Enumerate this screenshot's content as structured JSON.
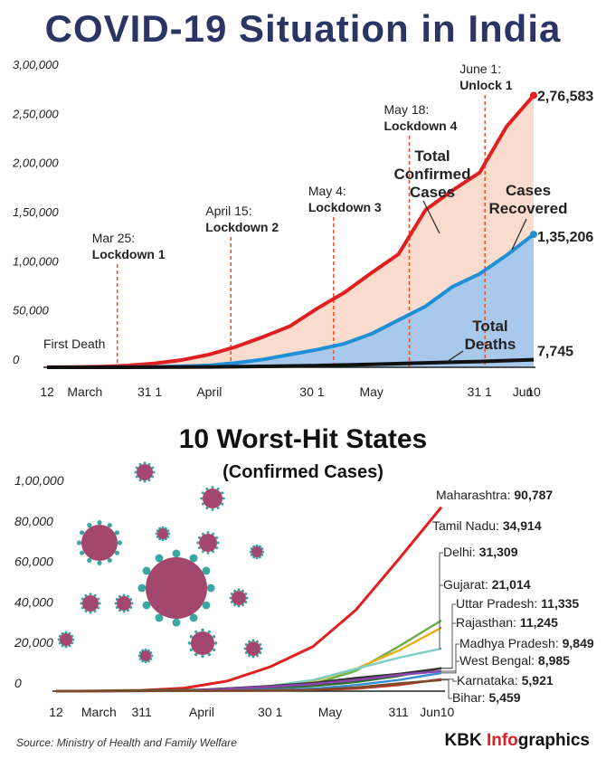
{
  "page": {
    "title": "COVID-19 Situation in India",
    "source": "Source: Ministry of Health and Family Welfare",
    "brand_a": "KBK ",
    "brand_b": "Info",
    "brand_c": "graphics"
  },
  "chart_data": [
    {
      "type": "area",
      "ylim": [
        0,
        300000
      ],
      "y_ticks": [
        "0",
        "50,000",
        "1,00,000",
        "1,50,000",
        "2,00,000",
        "2,50,000",
        "3,00,000"
      ],
      "x_ticks": [
        "12",
        "March",
        "31 1",
        "April",
        "30 1",
        "May",
        "31 1",
        "Jun",
        "10"
      ],
      "x_days": [
        0,
        7,
        19,
        30,
        49,
        60,
        80,
        88,
        90
      ],
      "first_death_label": "First Death",
      "events": [
        {
          "date_label": "Mar 25:",
          "name": "Lockdown 1",
          "day": 13
        },
        {
          "date_label": "April 15:",
          "name": "Lockdown 2",
          "day": 34
        },
        {
          "date_label": "May 4:",
          "name": "Lockdown 3",
          "day": 53
        },
        {
          "date_label": "May 18:",
          "name": "Lockdown 4",
          "day": 67
        },
        {
          "date_label": "June 1:",
          "name": "Unlock 1",
          "day": 81
        }
      ],
      "series": [
        {
          "name": "Total Confirmed Cases",
          "color": "#e02020",
          "end_label": "2,76,583",
          "x": [
            0,
            5,
            10,
            15,
            20,
            25,
            30,
            35,
            40,
            45,
            50,
            55,
            60,
            65,
            70,
            75,
            80,
            85,
            90
          ],
          "y": [
            100,
            200,
            700,
            1800,
            4000,
            7500,
            13000,
            21000,
            31000,
            42000,
            60000,
            76000,
            96000,
            115000,
            160000,
            180000,
            198000,
            245000,
            276583
          ]
        },
        {
          "name": "Cases Recovered",
          "color": "#1f8fd6",
          "end_label": "1,35,206",
          "x": [
            0,
            5,
            10,
            15,
            20,
            25,
            30,
            35,
            40,
            45,
            50,
            55,
            60,
            65,
            70,
            75,
            80,
            85,
            90
          ],
          "y": [
            0,
            10,
            40,
            150,
            300,
            1000,
            2000,
            4500,
            8000,
            13000,
            18000,
            24000,
            34000,
            48000,
            62000,
            82000,
            95000,
            114000,
            135206
          ]
        },
        {
          "name": "Total Deaths",
          "color": "#111111",
          "end_label": "7,745",
          "x": [
            0,
            10,
            20,
            30,
            40,
            50,
            60,
            70,
            80,
            90
          ],
          "y": [
            0,
            10,
            100,
            400,
            900,
            1700,
            3000,
            4500,
            5900,
            7745
          ]
        }
      ],
      "labels": {
        "confirmed": [
          "Total",
          "Confirmed",
          "Cases"
        ],
        "recovered": [
          "Cases",
          "Recovered"
        ],
        "deaths": [
          "Total",
          "Deaths"
        ]
      }
    },
    {
      "type": "line",
      "title": "10 Worst-Hit States",
      "subtitle": "(Confirmed Cases)",
      "ylim": [
        0,
        100000
      ],
      "y_ticks": [
        "0",
        "20,000",
        "40,000",
        "60,000",
        "80,000",
        "1,00,000"
      ],
      "x_ticks": [
        "12",
        "March",
        "311",
        "April",
        "30 1",
        "May",
        "311",
        "Jun10"
      ],
      "x_days": [
        0,
        10,
        20,
        34,
        50,
        64,
        80,
        89
      ],
      "series": [
        {
          "name": "Maharashtra",
          "value": "90,787",
          "color": "#e02020",
          "x": [
            0,
            10,
            20,
            30,
            40,
            50,
            60,
            70,
            80,
            90
          ],
          "y": [
            0,
            80,
            400,
            1500,
            5000,
            12000,
            22000,
            40000,
            65000,
            90787
          ]
        },
        {
          "name": "Tamil Nadu",
          "value": "34,914",
          "color": "#6ab04c",
          "x": [
            0,
            30,
            50,
            60,
            70,
            80,
            90
          ],
          "y": [
            0,
            100,
            1500,
            3500,
            10000,
            22000,
            34914
          ]
        },
        {
          "name": "Delhi",
          "value": "31,309",
          "color": "#e8b020",
          "x": [
            0,
            30,
            50,
            60,
            70,
            80,
            90
          ],
          "y": [
            0,
            200,
            2000,
            5000,
            11000,
            20000,
            31309
          ]
        },
        {
          "name": "Gujarat",
          "value": "21,014",
          "color": "#7dcfc4",
          "x": [
            0,
            30,
            50,
            60,
            70,
            80,
            90
          ],
          "y": [
            0,
            100,
            2500,
            5500,
            11000,
            16500,
            21014
          ]
        },
        {
          "name": "Uttar Pradesh",
          "value": "11,335",
          "color": "#2e6b2e",
          "x": [
            0,
            40,
            60,
            70,
            80,
            90
          ],
          "y": [
            0,
            800,
            2500,
            4500,
            7500,
            11335
          ]
        },
        {
          "name": "Rajasthan",
          "value": "11,245",
          "color": "#333333",
          "x": [
            0,
            30,
            50,
            60,
            70,
            80,
            90
          ],
          "y": [
            0,
            200,
            2500,
            4000,
            6500,
            8500,
            11245
          ]
        },
        {
          "name": "Madhya Pradesh",
          "value": "9,849",
          "color": "#8e44ad",
          "x": [
            0,
            30,
            50,
            60,
            70,
            80,
            90
          ],
          "y": [
            0,
            100,
            2200,
            3500,
            5500,
            8000,
            9849
          ]
        },
        {
          "name": "West Bengal",
          "value": "8,985",
          "color": "#3a8fd0",
          "x": [
            0,
            40,
            60,
            70,
            80,
            90
          ],
          "y": [
            0,
            300,
            1200,
            3000,
            5500,
            8985
          ]
        },
        {
          "name": "Karnataka",
          "value": "5,921",
          "color": "#c0392b",
          "x": [
            0,
            40,
            60,
            70,
            80,
            90
          ],
          "y": [
            0,
            200,
            600,
            1200,
            3000,
            5921
          ]
        },
        {
          "name": "Bihar",
          "value": "5,459",
          "color": "#7a4a2a",
          "x": [
            0,
            50,
            60,
            70,
            80,
            90
          ],
          "y": [
            0,
            300,
            600,
            1800,
            3800,
            5459
          ]
        }
      ]
    }
  ]
}
